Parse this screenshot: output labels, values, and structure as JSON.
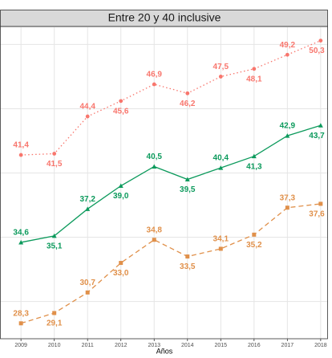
{
  "chart_data": {
    "type": "line",
    "title": "Entre 20 y 40 inclusive",
    "x_label": "Años",
    "x": [
      2009,
      2010,
      2011,
      2012,
      2013,
      2014,
      2015,
      2016,
      2017,
      2018
    ],
    "xlim": [
      2008.37,
      2018.22
    ],
    "xticks": [
      2009,
      2010,
      2011,
      2012,
      2013,
      2014,
      2015,
      2016,
      2017,
      2018
    ],
    "ylim": [
      27.1,
      51.4
    ],
    "yticks": [
      30,
      35,
      40,
      45,
      50
    ],
    "grid": true,
    "series": [
      {
        "color": "#f8766d",
        "dash": "dotted",
        "marker": "circle",
        "values": [
          41.4,
          41.5,
          44.4,
          45.6,
          46.9,
          46.2,
          47.5,
          48.1,
          49.2,
          50.3
        ],
        "value_labels": [
          "41,4",
          "41,5",
          "44,4",
          "45,6",
          "46,9",
          "46,2",
          "47,5",
          "48,1",
          "49,2",
          "50,3"
        ]
      },
      {
        "color": "#0c9a5c",
        "dash": "solid",
        "marker": "triangle",
        "values": [
          34.6,
          35.1,
          37.2,
          39.0,
          40.5,
          39.5,
          40.4,
          41.3,
          42.9,
          43.7
        ],
        "value_labels": [
          "34,6",
          "35,1",
          "37,2",
          "39,0",
          "40,5",
          "39,5",
          "40,4",
          "41,3",
          "42,9",
          "43,7"
        ]
      },
      {
        "color": "#e0904a",
        "dash": "dashed",
        "marker": "square",
        "values": [
          28.3,
          29.1,
          30.7,
          33.0,
          34.8,
          33.5,
          34.1,
          35.2,
          37.3,
          37.6
        ],
        "value_labels": [
          "28,3",
          "29,1",
          "30,7",
          "33,0",
          "34,8",
          "33,5",
          "34,1",
          "35,2",
          "37,3",
          "37,6"
        ]
      }
    ]
  }
}
